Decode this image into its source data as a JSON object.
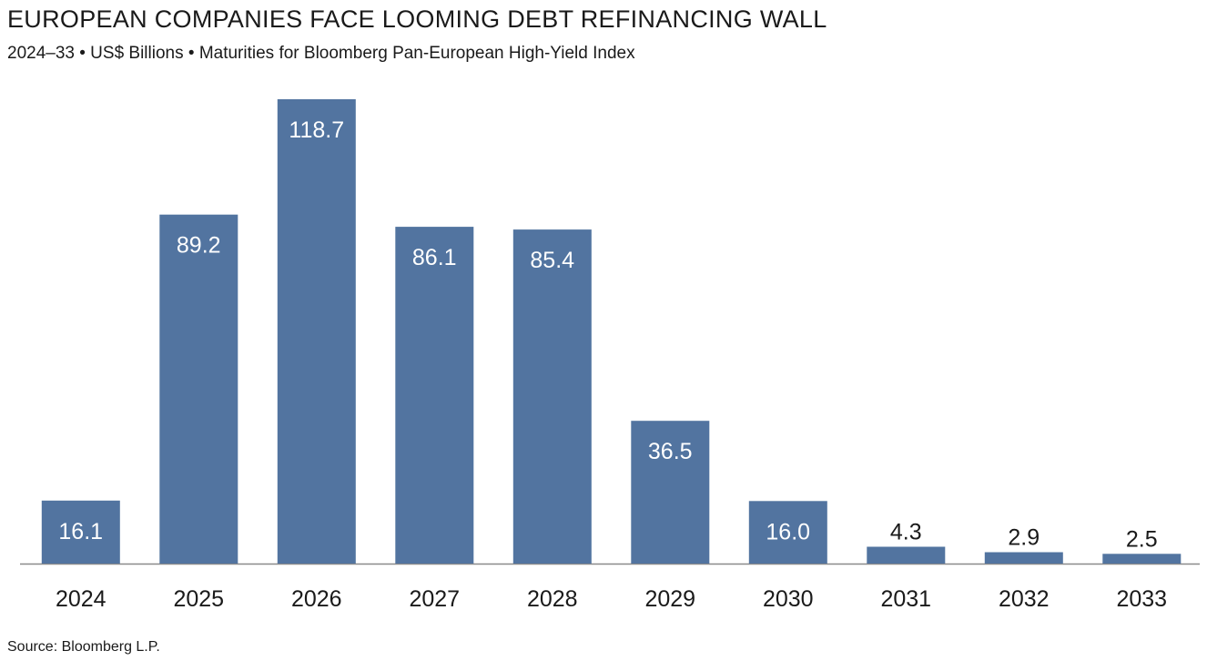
{
  "header": {
    "title": "EUROPEAN COMPANIES FACE LOOMING DEBT REFINANCING WALL",
    "subtitle": "2024–33 • US$ Billions • Maturities for Bloomberg Pan-European High-Yield Index"
  },
  "footer": {
    "source": "Source: Bloomberg L.P."
  },
  "chart_data": {
    "type": "bar",
    "title": "EUROPEAN COMPANIES FACE LOOMING DEBT REFINANCING WALL",
    "subtitle": "2024–33 • US$ Billions • Maturities for Bloomberg Pan-European High-Yield Index",
    "categories": [
      "2024",
      "2025",
      "2026",
      "2027",
      "2028",
      "2029",
      "2030",
      "2031",
      "2032",
      "2033"
    ],
    "values": [
      16.1,
      89.2,
      118.7,
      86.1,
      85.4,
      36.5,
      16.0,
      4.3,
      2.9,
      2.5
    ],
    "labels": [
      "16.1",
      "89.2",
      "118.7",
      "86.1",
      "85.4",
      "36.5",
      "16.0",
      "4.3",
      "2.9",
      "2.5"
    ],
    "xlabel": "",
    "ylabel": "",
    "ylim": [
      0,
      118.7
    ],
    "grid": false,
    "legend": "none",
    "colors": {
      "bar": "#5274a0",
      "inside_label": "#ffffff",
      "outside_label": "#1a1a1a",
      "axis": "#8a8a8a"
    }
  }
}
